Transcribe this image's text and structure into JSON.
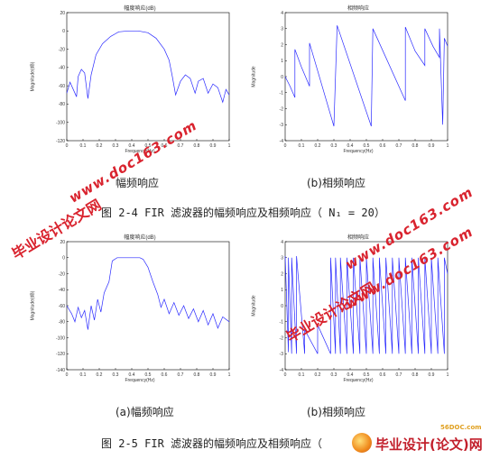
{
  "figures": [
    {
      "subplots": [
        {
          "title": "幅度响应(dB)",
          "xlabel": "Frequency(Hz)",
          "ylabel": "Magnitude(dB)",
          "yticks": [
            "20",
            "0",
            "-20",
            "-40",
            "-60",
            "-80",
            "-100",
            "-120"
          ],
          "xticks": [
            "0",
            "0.1",
            "0.2",
            "0.3",
            "0.4",
            "0.5",
            "0.6",
            "0.7",
            "0.8",
            "0.9",
            "1"
          ]
        },
        {
          "title": "相频响应",
          "xlabel": "Frequency(Hz)",
          "ylabel": "Magnitude",
          "yticks": [
            "4",
            "3",
            "2",
            "1",
            "0",
            "-1",
            "-2",
            "-3",
            "-4"
          ],
          "xticks": [
            "0",
            "0.1",
            "0.2",
            "0.3",
            "0.4",
            "0.5",
            "0.6",
            "0.7",
            "0.8",
            "0.9",
            "1"
          ]
        }
      ],
      "subcaption_a": "幅频响应",
      "subcaption_b": "(b)相频响应",
      "caption": "图 2-4 FIR 滤波器的幅频响应及相频响应（ N₁ = 20）"
    },
    {
      "subplots": [
        {
          "title": "幅度响应(dB)",
          "xlabel": "Frequency(Hz)",
          "ylabel": "Magnitude(dB)",
          "yticks": [
            "20",
            "0",
            "-20",
            "-40",
            "-60",
            "-80",
            "-100",
            "-120",
            "-140"
          ],
          "xticks": [
            "0",
            "0.1",
            "0.2",
            "0.3",
            "0.4",
            "0.5",
            "0.6",
            "0.7",
            "0.8",
            "0.9",
            "1"
          ]
        },
        {
          "title": "相频响应",
          "xlabel": "Frequency(Hz)",
          "ylabel": "Magnitude",
          "yticks": [
            "4",
            "3",
            "2",
            "1",
            "0",
            "-1",
            "-2",
            "-3",
            "-4"
          ],
          "xticks": [
            "0",
            "0.1",
            "0.2",
            "0.3",
            "0.4",
            "0.5",
            "0.6",
            "0.7",
            "0.8",
            "0.9",
            "1"
          ]
        }
      ],
      "subcaption_a": "(a)幅频响应",
      "subcaption_b": "(b)相频响应",
      "caption": "图 2-5 FIR 滤波器的幅频响应及相频响应（"
    }
  ],
  "chart_data": [
    {
      "type": "line",
      "title": "幅度响应(dB)",
      "xlabel": "Frequency(Hz)",
      "ylabel": "Magnitude(dB)",
      "xlim": [
        0,
        1
      ],
      "ylim": [
        -120,
        20
      ],
      "grid": false,
      "series": [
        {
          "values": [
            [
              0,
              -68
            ],
            [
              0.02,
              -56
            ],
            [
              0.04,
              -64
            ],
            [
              0.06,
              -72
            ],
            [
              0.07,
              -50
            ],
            [
              0.09,
              -42
            ],
            [
              0.11,
              -46
            ],
            [
              0.13,
              -74
            ],
            [
              0.15,
              -48
            ],
            [
              0.18,
              -26
            ],
            [
              0.22,
              -14
            ],
            [
              0.27,
              -6
            ],
            [
              0.32,
              -1
            ],
            [
              0.38,
              0
            ],
            [
              0.44,
              0
            ],
            [
              0.5,
              -2
            ],
            [
              0.55,
              -8
            ],
            [
              0.6,
              -20
            ],
            [
              0.63,
              -32
            ],
            [
              0.65,
              -50
            ],
            [
              0.67,
              -70
            ],
            [
              0.7,
              -55
            ],
            [
              0.73,
              -48
            ],
            [
              0.76,
              -52
            ],
            [
              0.79,
              -68
            ],
            [
              0.81,
              -55
            ],
            [
              0.84,
              -52
            ],
            [
              0.87,
              -68
            ],
            [
              0.9,
              -58
            ],
            [
              0.93,
              -62
            ],
            [
              0.96,
              -78
            ],
            [
              0.98,
              -64
            ],
            [
              1,
              -70
            ]
          ]
        }
      ]
    },
    {
      "type": "line",
      "title": "相频响应",
      "xlabel": "Frequency(Hz)",
      "ylabel": "Magnitude",
      "xlim": [
        0,
        1
      ],
      "ylim": [
        -4,
        4
      ],
      "grid": false,
      "series": [
        {
          "values": [
            [
              0,
              0
            ],
            [
              0.03,
              -0.6
            ],
            [
              0.06,
              -1.3
            ],
            [
              0.06,
              1.7
            ],
            [
              0.1,
              0.6
            ],
            [
              0.15,
              -0.6
            ],
            [
              0.15,
              2.1
            ],
            [
              0.3,
              -3.1
            ],
            [
              0.32,
              3.2
            ],
            [
              0.53,
              -3.1
            ],
            [
              0.54,
              3.0
            ],
            [
              0.74,
              -1.5
            ],
            [
              0.74,
              3.1
            ],
            [
              0.8,
              1.6
            ],
            [
              0.86,
              0.7
            ],
            [
              0.86,
              3.0
            ],
            [
              0.91,
              1.9
            ],
            [
              0.95,
              1.2
            ],
            [
              0.95,
              3.0
            ],
            [
              0.97,
              -3.0
            ],
            [
              0.98,
              2.4
            ],
            [
              1,
              1.9
            ]
          ]
        }
      ]
    },
    {
      "type": "line",
      "title": "幅度响应(dB)",
      "xlabel": "Frequency(Hz)",
      "ylabel": "Magnitude(dB)",
      "xlim": [
        0,
        1
      ],
      "ylim": [
        -140,
        20
      ],
      "grid": false,
      "series": [
        {
          "values": [
            [
              0,
              -60
            ],
            [
              0.03,
              -70
            ],
            [
              0.05,
              -80
            ],
            [
              0.07,
              -62
            ],
            [
              0.09,
              -75
            ],
            [
              0.11,
              -66
            ],
            [
              0.13,
              -90
            ],
            [
              0.15,
              -60
            ],
            [
              0.17,
              -78
            ],
            [
              0.19,
              -52
            ],
            [
              0.21,
              -68
            ],
            [
              0.23,
              -44
            ],
            [
              0.26,
              -30
            ],
            [
              0.28,
              -4
            ],
            [
              0.31,
              0
            ],
            [
              0.45,
              0
            ],
            [
              0.47,
              -2
            ],
            [
              0.5,
              -12
            ],
            [
              0.53,
              -30
            ],
            [
              0.56,
              -46
            ],
            [
              0.58,
              -62
            ],
            [
              0.6,
              -52
            ],
            [
              0.63,
              -70
            ],
            [
              0.66,
              -56
            ],
            [
              0.69,
              -72
            ],
            [
              0.72,
              -60
            ],
            [
              0.75,
              -76
            ],
            [
              0.78,
              -64
            ],
            [
              0.81,
              -80
            ],
            [
              0.84,
              -66
            ],
            [
              0.87,
              -84
            ],
            [
              0.9,
              -70
            ],
            [
              0.93,
              -88
            ],
            [
              0.96,
              -74
            ],
            [
              1,
              -80
            ]
          ]
        }
      ]
    },
    {
      "type": "line",
      "title": "相频响应",
      "xlabel": "Frequency(Hz)",
      "ylabel": "Magnitude",
      "xlim": [
        0,
        1
      ],
      "ylim": [
        -4,
        4
      ],
      "grid": false,
      "series": [
        {
          "values": [
            [
              0,
              3.1
            ],
            [
              0.02,
              -2.9
            ],
            [
              0.02,
              3.0
            ],
            [
              0.04,
              -3.0
            ],
            [
              0.04,
              3.0
            ],
            [
              0.07,
              -3.0
            ],
            [
              0.07,
              3.1
            ],
            [
              0.12,
              -3.0
            ],
            [
              0.12,
              -1.5
            ],
            [
              0.2,
              -3.0
            ],
            [
              0.2,
              -1.2
            ],
            [
              0.28,
              -3.0
            ],
            [
              0.28,
              3.0
            ],
            [
              0.31,
              -3.0
            ],
            [
              0.31,
              3.0
            ],
            [
              0.34,
              -3.0
            ],
            [
              0.34,
              3.0
            ],
            [
              0.38,
              -3.0
            ],
            [
              0.38,
              3.0
            ],
            [
              0.42,
              -3.0
            ],
            [
              0.42,
              3.0
            ],
            [
              0.46,
              -3.0
            ],
            [
              0.46,
              3.0
            ],
            [
              0.5,
              -3.0
            ],
            [
              0.5,
              3.0
            ],
            [
              0.54,
              -3.0
            ],
            [
              0.54,
              3.0
            ],
            [
              0.58,
              -3.0
            ],
            [
              0.58,
              3.0
            ],
            [
              0.62,
              -3.0
            ],
            [
              0.62,
              3.0
            ],
            [
              0.66,
              -3.0
            ],
            [
              0.66,
              3.0
            ],
            [
              0.7,
              -3.0
            ],
            [
              0.7,
              3.0
            ],
            [
              0.74,
              -3.0
            ],
            [
              0.74,
              3.0
            ],
            [
              0.78,
              -3.0
            ],
            [
              0.78,
              3.0
            ],
            [
              0.82,
              -3.0
            ],
            [
              0.82,
              3.0
            ],
            [
              0.86,
              -3.0
            ],
            [
              0.86,
              3.0
            ],
            [
              0.9,
              -3.0
            ],
            [
              0.9,
              3.0
            ],
            [
              0.94,
              -3.0
            ],
            [
              0.94,
              3.0
            ],
            [
              0.98,
              -3.0
            ],
            [
              0.98,
              3.0
            ],
            [
              1,
              2.0
            ]
          ]
        }
      ]
    }
  ],
  "colors": {
    "line": "#2a2aff",
    "watermark": "#d9232e",
    "axis": "#000000"
  },
  "watermarks": [
    "www.doc163.com",
    "毕业设计论文网",
    "www.doc163.com",
    "毕业设计论文网",
    "www.doc163.com"
  ],
  "logo": {
    "small": "56DOC.com",
    "brand": "毕业设计(论文)网"
  }
}
